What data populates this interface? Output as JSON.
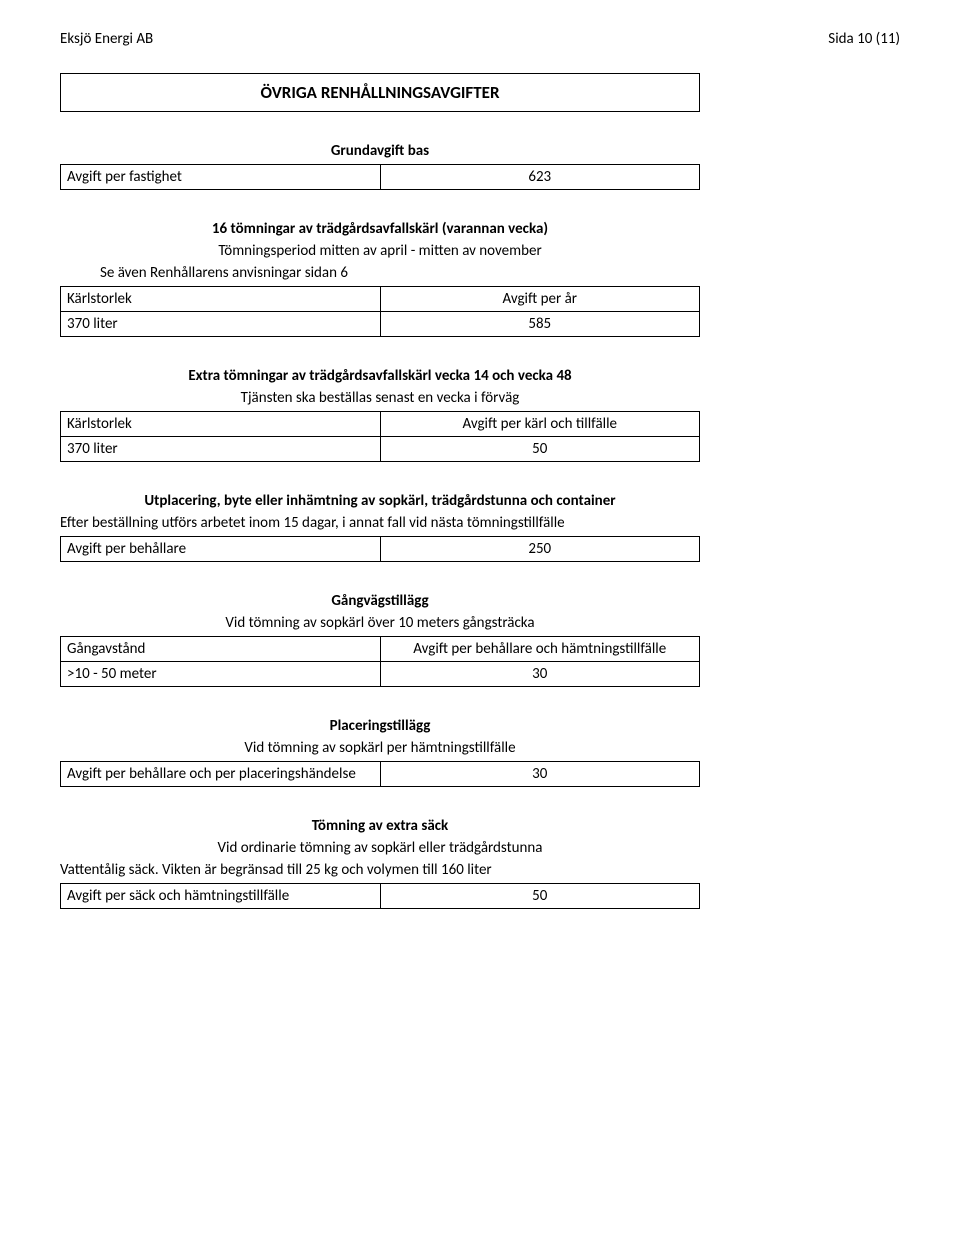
{
  "header": {
    "company": "Eksjö Energi AB",
    "page_label": "Sida 10 (11)"
  },
  "main_title": "ÖVRIGA RENHÅLLNINGSAVGIFTER",
  "sections": {
    "grundavgift": {
      "title": "Grundavgift bas",
      "rows": [
        {
          "left": "Avgift per fastighet",
          "right": "623"
        }
      ]
    },
    "tomningar16": {
      "title": "16 tömningar av trädgårdsavfallskärl (varannan vecka)",
      "subtitle": "Tömningsperiod mitten av april - mitten av november",
      "note": "Se även Renhållarens anvisningar sidan 6",
      "rows": [
        {
          "left": "Kärlstorlek",
          "right": "Avgift per år"
        },
        {
          "left": "370 liter",
          "right": "585"
        }
      ]
    },
    "extra_tomningar": {
      "title": "Extra tömningar av trädgårdsavfallskärl vecka 14 och vecka 48",
      "subtitle": "Tjänsten ska beställas senast en vecka i förväg",
      "rows": [
        {
          "left": "Kärlstorlek",
          "right": "Avgift per kärl och tillfälle"
        },
        {
          "left": "370 liter",
          "right": "50"
        }
      ]
    },
    "utplacering": {
      "title": "Utplacering, byte eller inhämtning av sopkärl, trädgårdstunna och container",
      "preamble": "Efter beställning utförs arbetet inom 15 dagar, i annat fall vid nästa tömningstillfälle",
      "rows": [
        {
          "left": "Avgift per behållare",
          "right": "250"
        }
      ]
    },
    "gangvagstillagg": {
      "title": "Gångvägstillägg",
      "subtitle": "Vid tömning av sopkärl över 10 meters gångsträcka",
      "rows": [
        {
          "left": "Gångavstånd",
          "right": "Avgift per behållare och hämtningstillfälle"
        },
        {
          "left": ">10 - 50 meter",
          "right": "30"
        }
      ]
    },
    "placeringstillagg": {
      "title": "Placeringstillägg",
      "subtitle": "Vid tömning av sopkärl per hämtningstillfälle",
      "rows": [
        {
          "left": "Avgift per behållare och per placeringshändelse",
          "right": "30"
        }
      ]
    },
    "tomning_extra_sack": {
      "title": "Tömning av extra säck",
      "subtitle": "Vid ordinarie tömning av sopkärl eller trädgårdstunna",
      "preamble": "Vattentålig säck. Vikten är begränsad till 25 kg och volymen till 160 liter",
      "rows": [
        {
          "left": "Avgift per säck och hämtningstillfälle",
          "right": "50"
        }
      ]
    }
  }
}
